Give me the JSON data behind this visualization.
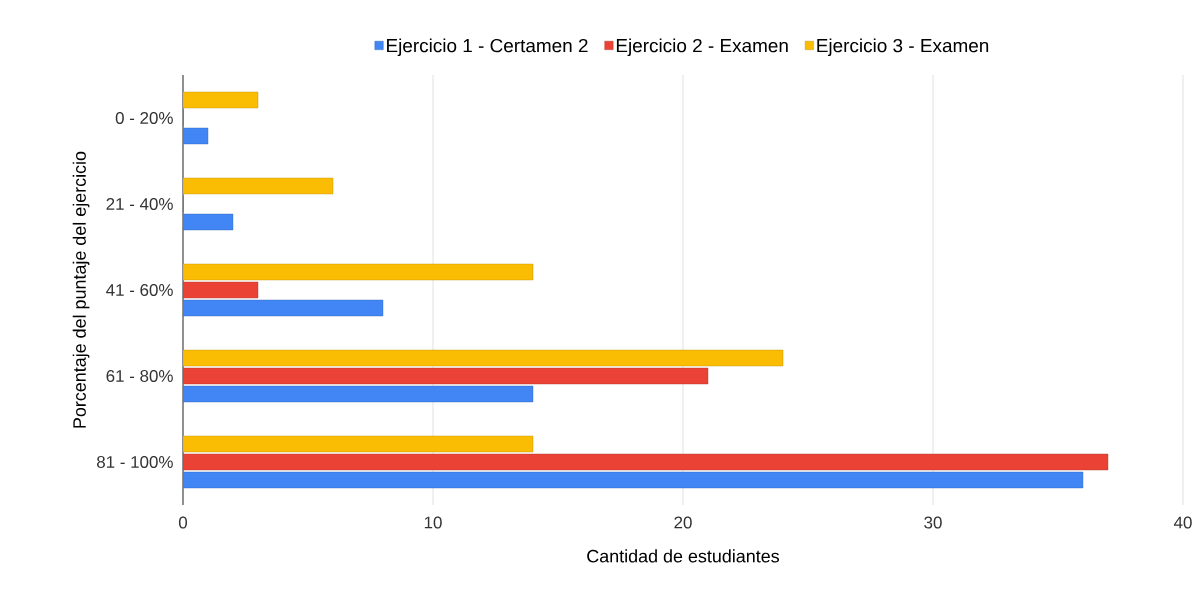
{
  "chart_data": {
    "type": "bar",
    "orientation": "horizontal",
    "xlabel": "Cantidad de estudiantes",
    "ylabel": "Porcentaje del puntaje del ejercicio",
    "categories": [
      "0 - 20%",
      "21 - 40%",
      "41 - 60%",
      "61 - 80%",
      "81 - 100%"
    ],
    "series": [
      {
        "name": "Ejercicio 1 - Certamen 2",
        "color": "#4285f4",
        "values": [
          1,
          2,
          8,
          14,
          36
        ]
      },
      {
        "name": "Ejercicio 2 - Examen",
        "color": "#ea4335",
        "values": [
          0,
          0,
          3,
          21,
          37
        ]
      },
      {
        "name": "Ejercicio 3 - Examen",
        "color": "#fbbc04",
        "values": [
          3,
          6,
          14,
          24,
          14
        ]
      }
    ],
    "xlim": [
      0,
      40
    ],
    "xticks": [
      0,
      10,
      20,
      30,
      40
    ],
    "grid": "x",
    "legend": "top"
  }
}
